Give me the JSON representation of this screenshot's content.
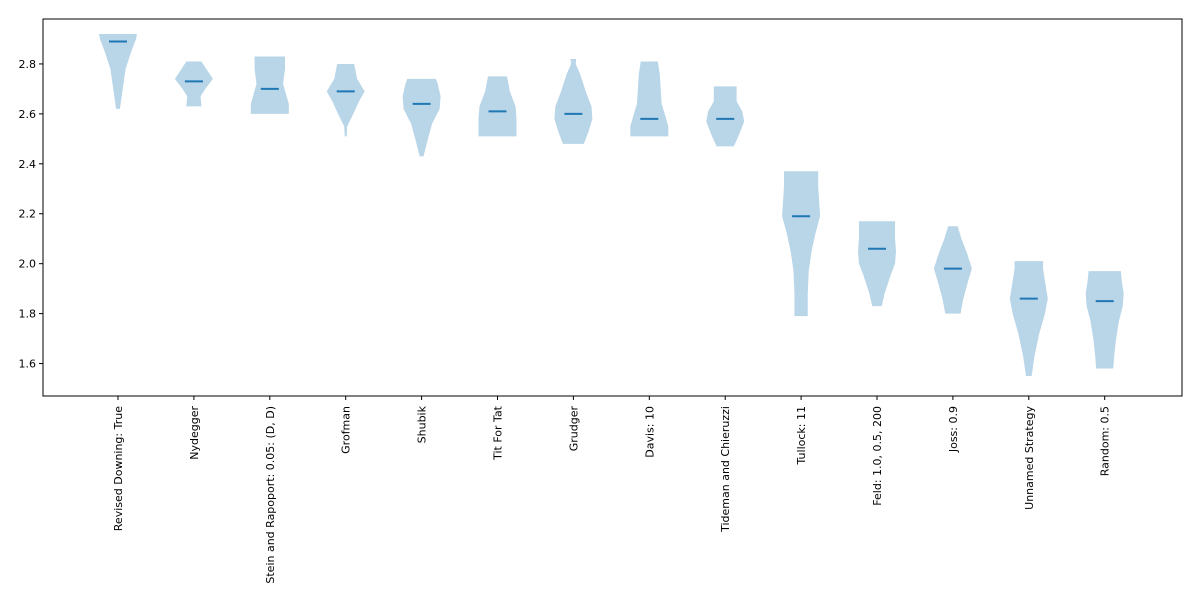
{
  "chart_data": {
    "type": "violin",
    "title": "",
    "xlabel": "",
    "ylabel": "",
    "ylim": [
      1.47,
      2.98
    ],
    "yticks": [
      1.6,
      1.8,
      2.0,
      2.2,
      2.4,
      2.6,
      2.8
    ],
    "ytick_labels": [
      "1.6",
      "1.8",
      "2.0",
      "2.2",
      "2.4",
      "2.6",
      "2.8"
    ],
    "grid": false,
    "fill_color": "#b9d5e8",
    "median_color": "#1f77b4",
    "categories": [
      "Revised Downing: True",
      "Nydegger",
      "Stein and Rapoport: 0.05: (D, D)",
      "Grofman",
      "Shubik",
      "Tit For Tat",
      "Grudger",
      "Davis: 10",
      "Tideman and Chieruzzi",
      "Tullock: 11",
      "Feld: 1.0, 0.5, 200",
      "Joss: 0.9",
      "Unnamed Strategy",
      "Random: 0.5"
    ],
    "series": [
      {
        "min": 2.62,
        "max": 2.92,
        "median": 2.89,
        "profile": [
          [
            2.62,
            0.1
          ],
          [
            2.7,
            0.25
          ],
          [
            2.78,
            0.4
          ],
          [
            2.85,
            0.7
          ],
          [
            2.9,
            0.95
          ],
          [
            2.92,
            1.0
          ]
        ]
      },
      {
        "min": 2.63,
        "max": 2.81,
        "median": 2.73,
        "profile": [
          [
            2.63,
            0.4
          ],
          [
            2.67,
            0.35
          ],
          [
            2.7,
            0.6
          ],
          [
            2.74,
            1.0
          ],
          [
            2.78,
            0.65
          ],
          [
            2.81,
            0.4
          ]
        ]
      },
      {
        "min": 2.6,
        "max": 2.83,
        "median": 2.7,
        "profile": [
          [
            2.6,
            1.0
          ],
          [
            2.64,
            1.0
          ],
          [
            2.68,
            0.85
          ],
          [
            2.72,
            0.7
          ],
          [
            2.78,
            0.8
          ],
          [
            2.83,
            0.8
          ]
        ]
      },
      {
        "min": 2.51,
        "max": 2.8,
        "median": 2.69,
        "profile": [
          [
            2.51,
            0.05
          ],
          [
            2.55,
            0.08
          ],
          [
            2.6,
            0.4
          ],
          [
            2.65,
            0.7
          ],
          [
            2.69,
            1.0
          ],
          [
            2.74,
            0.6
          ],
          [
            2.8,
            0.45
          ]
        ]
      },
      {
        "min": 2.43,
        "max": 2.74,
        "median": 2.64,
        "profile": [
          [
            2.43,
            0.1
          ],
          [
            2.49,
            0.3
          ],
          [
            2.56,
            0.55
          ],
          [
            2.62,
            0.95
          ],
          [
            2.67,
            1.0
          ],
          [
            2.72,
            0.85
          ],
          [
            2.74,
            0.75
          ]
        ]
      },
      {
        "min": 2.51,
        "max": 2.75,
        "median": 2.61,
        "profile": [
          [
            2.51,
            1.0
          ],
          [
            2.54,
            1.0
          ],
          [
            2.58,
            1.0
          ],
          [
            2.63,
            0.95
          ],
          [
            2.69,
            0.65
          ],
          [
            2.75,
            0.5
          ]
        ]
      },
      {
        "min": 2.48,
        "max": 2.82,
        "median": 2.6,
        "profile": [
          [
            2.48,
            0.55
          ],
          [
            2.53,
            0.8
          ],
          [
            2.58,
            1.0
          ],
          [
            2.63,
            0.95
          ],
          [
            2.69,
            0.65
          ],
          [
            2.76,
            0.35
          ],
          [
            2.8,
            0.12
          ],
          [
            2.82,
            0.15
          ]
        ]
      },
      {
        "min": 2.51,
        "max": 2.81,
        "median": 2.58,
        "profile": [
          [
            2.51,
            1.0
          ],
          [
            2.55,
            1.0
          ],
          [
            2.59,
            0.85
          ],
          [
            2.64,
            0.65
          ],
          [
            2.7,
            0.6
          ],
          [
            2.76,
            0.55
          ],
          [
            2.81,
            0.45
          ]
        ]
      },
      {
        "min": 2.47,
        "max": 2.71,
        "median": 2.58,
        "profile": [
          [
            2.47,
            0.45
          ],
          [
            2.52,
            0.75
          ],
          [
            2.57,
            1.0
          ],
          [
            2.61,
            0.9
          ],
          [
            2.65,
            0.6
          ],
          [
            2.71,
            0.6
          ]
        ]
      },
      {
        "min": 1.79,
        "max": 2.37,
        "median": 2.19,
        "profile": [
          [
            1.79,
            0.35
          ],
          [
            1.88,
            0.35
          ],
          [
            1.97,
            0.4
          ],
          [
            2.05,
            0.55
          ],
          [
            2.12,
            0.75
          ],
          [
            2.19,
            1.0
          ],
          [
            2.25,
            0.95
          ],
          [
            2.31,
            0.9
          ],
          [
            2.37,
            0.9
          ]
        ]
      },
      {
        "min": 1.83,
        "max": 2.17,
        "median": 2.06,
        "profile": [
          [
            1.83,
            0.25
          ],
          [
            1.88,
            0.4
          ],
          [
            1.95,
            0.7
          ],
          [
            2.0,
            0.95
          ],
          [
            2.05,
            1.0
          ],
          [
            2.1,
            0.95
          ],
          [
            2.17,
            0.95
          ]
        ]
      },
      {
        "min": 1.8,
        "max": 2.15,
        "median": 1.98,
        "profile": [
          [
            1.8,
            0.4
          ],
          [
            1.86,
            0.55
          ],
          [
            1.93,
            0.8
          ],
          [
            1.98,
            1.0
          ],
          [
            2.04,
            0.75
          ],
          [
            2.1,
            0.45
          ],
          [
            2.15,
            0.25
          ]
        ]
      },
      {
        "min": 1.55,
        "max": 2.01,
        "median": 1.86,
        "profile": [
          [
            1.55,
            0.15
          ],
          [
            1.63,
            0.3
          ],
          [
            1.72,
            0.55
          ],
          [
            1.8,
            0.85
          ],
          [
            1.86,
            1.0
          ],
          [
            1.93,
            0.85
          ],
          [
            1.98,
            0.75
          ],
          [
            2.01,
            0.75
          ]
        ]
      },
      {
        "min": 1.58,
        "max": 1.97,
        "median": 1.85,
        "profile": [
          [
            1.58,
            0.45
          ],
          [
            1.63,
            0.5
          ],
          [
            1.7,
            0.6
          ],
          [
            1.77,
            0.75
          ],
          [
            1.83,
            0.95
          ],
          [
            1.88,
            1.0
          ],
          [
            1.93,
            0.9
          ],
          [
            1.97,
            0.85
          ]
        ]
      }
    ]
  }
}
